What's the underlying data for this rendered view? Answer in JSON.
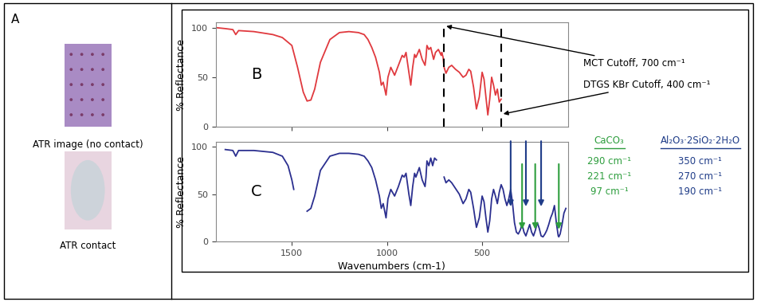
{
  "panel_a": {
    "label": "A",
    "images": [
      {
        "caption": "ATR image (no contact)"
      },
      {
        "caption": "ATR contact"
      }
    ]
  },
  "chart_data": [
    {
      "type": "line",
      "label": "B",
      "y_label": "% Reflectance",
      "color": "#e0393e",
      "xlim": [
        1900,
        50
      ],
      "xticks": [
        1500,
        1000,
        500
      ],
      "ylim": [
        0,
        105
      ],
      "yticks": [
        0,
        50,
        100
      ],
      "tick_labels": "y",
      "x": [
        1900,
        1850,
        1810,
        1795,
        1780,
        1700,
        1600,
        1550,
        1500,
        1470,
        1440,
        1420,
        1400,
        1380,
        1350,
        1300,
        1250,
        1200,
        1150,
        1120,
        1100,
        1080,
        1060,
        1040,
        1030,
        1020,
        1005,
        995,
        980,
        960,
        940,
        920,
        910,
        900,
        885,
        875,
        865,
        855,
        848,
        830,
        815,
        800,
        795,
        790,
        780,
        770,
        760,
        755,
        745,
        730,
        715,
        712,
        705,
        700,
        690,
        675,
        660,
        640,
        620,
        600,
        585,
        570,
        560,
        545,
        530,
        515,
        500,
        490,
        480,
        470,
        460,
        450,
        440,
        430,
        420,
        410,
        400
      ],
      "values": [
        100,
        99,
        98,
        93,
        97,
        96,
        93,
        90,
        82,
        60,
        35,
        26,
        27,
        38,
        65,
        88,
        95,
        96,
        95,
        93,
        88,
        80,
        70,
        55,
        42,
        45,
        32,
        50,
        60,
        52,
        62,
        72,
        70,
        75,
        55,
        42,
        60,
        73,
        70,
        78,
        68,
        62,
        70,
        82,
        78,
        80,
        72,
        68,
        75,
        78,
        72,
        75,
        70,
        60,
        54,
        60,
        62,
        58,
        55,
        50,
        52,
        58,
        56,
        40,
        18,
        30,
        55,
        48,
        30,
        12,
        28,
        50,
        42,
        32,
        38,
        25,
        28
      ],
      "annotations": [
        {
          "value": 700,
          "label": "MCT Cutoff, 700 cm⁻¹"
        },
        {
          "value": 400,
          "label": "DTGS KBr Cutoff, 400 cm⁻¹"
        }
      ]
    },
    {
      "type": "line",
      "label": "C",
      "y_label": "% Reflectance",
      "x_label": "Wavenumbers (cm-1)",
      "color": "#2b2f8f",
      "xlim": [
        1900,
        50
      ],
      "xticks": [
        1500,
        1000,
        500
      ],
      "ylim": [
        0,
        105
      ],
      "yticks": [
        0,
        50,
        100
      ],
      "x": [
        1850,
        1810,
        1795,
        1780,
        1700,
        1600,
        1550,
        1520,
        1500,
        1490,
        1460,
        1420,
        1400,
        1380,
        1350,
        1300,
        1250,
        1200,
        1150,
        1120,
        1100,
        1080,
        1060,
        1040,
        1030,
        1020,
        1005,
        995,
        980,
        960,
        940,
        920,
        910,
        900,
        885,
        875,
        865,
        855,
        848,
        830,
        815,
        800,
        795,
        790,
        780,
        770,
        760,
        750,
        740,
        720,
        700,
        690,
        675,
        660,
        640,
        620,
        600,
        585,
        570,
        560,
        545,
        530,
        515,
        500,
        490,
        480,
        470,
        460,
        450,
        440,
        430,
        420,
        410,
        400,
        390,
        380,
        370,
        360,
        350,
        340,
        330,
        320,
        310,
        300,
        290,
        280,
        270,
        260,
        250,
        240,
        230,
        220,
        210,
        200,
        190,
        180,
        170,
        160,
        150,
        140,
        130,
        120,
        110,
        100,
        97,
        90,
        80,
        70,
        60
      ],
      "values": [
        97,
        96,
        90,
        96,
        96,
        94,
        90,
        80,
        65,
        55,
        null,
        32,
        35,
        48,
        75,
        90,
        93,
        93,
        92,
        90,
        85,
        78,
        65,
        48,
        35,
        40,
        25,
        45,
        55,
        48,
        58,
        70,
        68,
        72,
        50,
        38,
        58,
        72,
        68,
        78,
        65,
        58,
        68,
        85,
        80,
        88,
        80,
        88,
        86,
        null,
        68,
        62,
        65,
        62,
        56,
        50,
        40,
        45,
        55,
        52,
        35,
        15,
        25,
        48,
        42,
        25,
        10,
        22,
        45,
        55,
        48,
        40,
        52,
        60,
        55,
        45,
        38,
        45,
        55,
        40,
        20,
        10,
        8,
        12,
        18,
        10,
        6,
        12,
        18,
        10,
        6,
        12,
        20,
        14,
        6,
        5,
        8,
        12,
        18,
        25,
        30,
        38,
        20,
        6,
        5,
        8,
        18,
        30,
        35
      ],
      "peak_table": [
        {
          "name": "CaCO₃",
          "color": "#2e9e3e",
          "peaks": [
            {
              "value": 290,
              "label": "290 cm⁻¹"
            },
            {
              "value": 221,
              "label": "221 cm⁻¹"
            },
            {
              "value": 97,
              "label": "97 cm⁻¹"
            }
          ]
        },
        {
          "name": "Al₂O₃·2SiO₂·2H₂O",
          "color": "#1f3c88",
          "peaks": [
            {
              "value": 350,
              "label": "350 cm⁻¹"
            },
            {
              "value": 270,
              "label": "270 cm⁻¹"
            },
            {
              "value": 190,
              "label": "190 cm⁻¹"
            }
          ]
        }
      ]
    }
  ]
}
